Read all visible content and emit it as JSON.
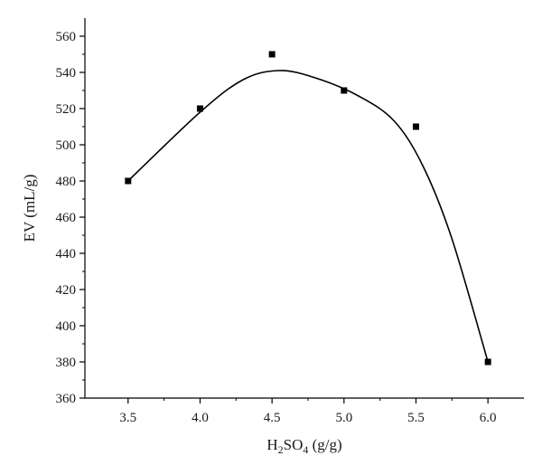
{
  "chart_data": {
    "type": "scatter",
    "title": "",
    "xlabel": {
      "base": "H",
      "sub1": "2",
      "mid": "SO",
      "sub2": "4",
      "tail": " (g/g)"
    },
    "ylabel": "EV (mL/g)",
    "xlim": [
      3.2,
      6.25
    ],
    "ylim": [
      360,
      570
    ],
    "x_ticks": [
      {
        "value": 3.5,
        "label": "3.5"
      },
      {
        "value": 4.0,
        "label": "4.0"
      },
      {
        "value": 4.5,
        "label": "4.5"
      },
      {
        "value": 5.0,
        "label": "5.0"
      },
      {
        "value": 5.5,
        "label": "5.5"
      },
      {
        "value": 6.0,
        "label": "6.0"
      }
    ],
    "y_ticks": [
      {
        "value": 360,
        "label": "360"
      },
      {
        "value": 380,
        "label": "380"
      },
      {
        "value": 400,
        "label": "400"
      },
      {
        "value": 420,
        "label": "420"
      },
      {
        "value": 440,
        "label": "440"
      },
      {
        "value": 460,
        "label": "460"
      },
      {
        "value": 480,
        "label": "480"
      },
      {
        "value": 500,
        "label": "500"
      },
      {
        "value": 520,
        "label": "520"
      },
      {
        "value": 540,
        "label": "540"
      },
      {
        "value": 560,
        "label": "560"
      }
    ],
    "grid": false,
    "series": [
      {
        "points": [
          {
            "x": 3.5,
            "y": 480
          },
          {
            "x": 4.0,
            "y": 520
          },
          {
            "x": 4.5,
            "y": 550
          },
          {
            "x": 5.0,
            "y": 530
          },
          {
            "x": 5.5,
            "y": 510
          },
          {
            "x": 6.0,
            "y": 380
          }
        ],
        "fit_curve": [
          {
            "x": 3.5,
            "y": 480
          },
          {
            "x": 4.0,
            "y": 518
          },
          {
            "x": 4.3,
            "y": 536
          },
          {
            "x": 4.55,
            "y": 541
          },
          {
            "x": 4.8,
            "y": 537
          },
          {
            "x": 5.1,
            "y": 527
          },
          {
            "x": 5.35,
            "y": 513
          },
          {
            "x": 5.55,
            "y": 488
          },
          {
            "x": 5.75,
            "y": 448
          },
          {
            "x": 6.0,
            "y": 380
          }
        ],
        "color": "#000000"
      }
    ]
  }
}
